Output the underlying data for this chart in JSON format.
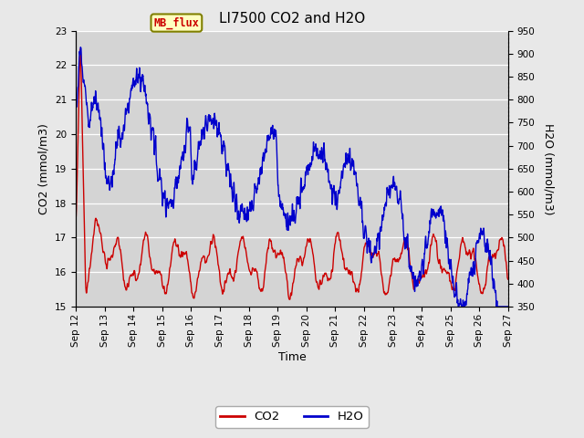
{
  "title": "LI7500 CO2 and H2O",
  "xlabel": "Time",
  "ylabel_left": "CO2 (mmol/m3)",
  "ylabel_right": "H2O (mmol/m3)",
  "co2_color": "#cc0000",
  "h2o_color": "#0000cc",
  "fig_facecolor": "#e8e8e8",
  "plot_facecolor": "#d4d4d4",
  "co2_ylim": [
    15.0,
    23.0
  ],
  "h2o_ylim": [
    350,
    950
  ],
  "co2_yticks": [
    15.0,
    16.0,
    17.0,
    18.0,
    19.0,
    20.0,
    21.0,
    22.0,
    23.0
  ],
  "h2o_yticks": [
    350,
    400,
    450,
    500,
    550,
    600,
    650,
    700,
    750,
    800,
    850,
    900,
    950
  ],
  "xtick_labels": [
    "Sep 12",
    "Sep 13",
    "Sep 14",
    "Sep 15",
    "Sep 16",
    "Sep 17",
    "Sep 18",
    "Sep 19",
    "Sep 20",
    "Sep 21",
    "Sep 22",
    "Sep 23",
    "Sep 24",
    "Sep 25",
    "Sep 26",
    "Sep 27"
  ],
  "annotation_text": "MB_flux",
  "title_fontsize": 11,
  "label_fontsize": 9,
  "tick_fontsize": 7.5,
  "linewidth": 1.0
}
